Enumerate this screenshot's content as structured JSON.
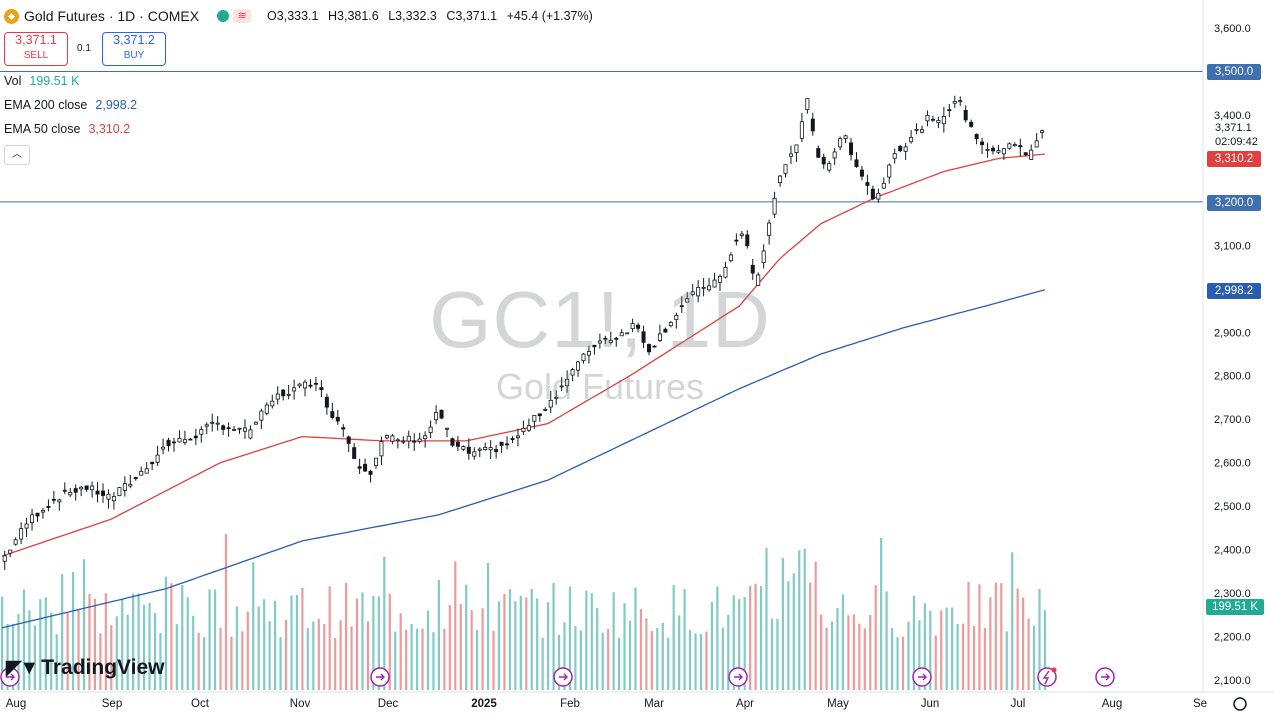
{
  "header": {
    "title": "Gold Futures · 1D · COMEX",
    "ohlc": {
      "open_label": "O",
      "open": "3,333.1",
      "high_label": "H",
      "high": "3,381.6",
      "low_label": "L",
      "low": "3,332.3",
      "close_label": "C",
      "close": "3,371.1",
      "change": "+45.4 (+1.37%)"
    },
    "icons": [
      "gold-coin-icon",
      "status-dot-icon",
      "menu-icon"
    ]
  },
  "trade": {
    "sell_price": "3,371.1",
    "sell_label": "SELL",
    "spread": "0.1",
    "buy_price": "3,371.2",
    "buy_label": "BUY"
  },
  "legend": {
    "vol_label": "Vol",
    "vol_value": "199.51 K",
    "ema200_label": "EMA 200 close",
    "ema200_value": "2,998.2",
    "ema50_label": "EMA 50 close",
    "ema50_value": "3,310.2"
  },
  "watermark": {
    "symbol": "GC1!, 1D",
    "name": "Gold Futures"
  },
  "brand": "TradingView",
  "price_axis_tags": {
    "level_high": "3,500.0",
    "level_low": "3,200.0",
    "last_price": "3,371.1",
    "countdown": "02:09:42",
    "ema50": "3,310.2",
    "ema200": "2,998.2",
    "volume": "199.51 K"
  },
  "colors": {
    "up": "#26a69a",
    "down": "#ef5350",
    "candle": "#131722",
    "ema50": "#e0403e",
    "ema200": "#2a5db0",
    "level": "#3f6fae",
    "vol_up": "#80cbc4",
    "vol_down": "#ef9a9a"
  },
  "chart_data": {
    "type": "candlestick",
    "symbol": "GC1!",
    "interval": "1D",
    "y_axis": {
      "ticks": [
        2100,
        2200,
        2300,
        2400,
        2500,
        2600,
        2700,
        2800,
        2900,
        3000,
        3100,
        3200,
        3300,
        3400,
        3500,
        3600
      ],
      "ylim": [
        2080,
        3620
      ]
    },
    "x_axis": {
      "ticks": [
        "Aug",
        "Sep",
        "Oct",
        "Nov",
        "Dec",
        "2025",
        "Feb",
        "Mar",
        "Apr",
        "May",
        "Jun",
        "Jul",
        "Aug",
        "Se"
      ]
    },
    "horizontal_levels": [
      3500,
      3200
    ],
    "price_anchors": [
      [
        0,
        2375
      ],
      [
        10,
        2470
      ],
      [
        20,
        2520
      ],
      [
        30,
        2545
      ],
      [
        40,
        2520
      ],
      [
        50,
        2570
      ],
      [
        60,
        2640
      ],
      [
        70,
        2660
      ],
      [
        78,
        2690
      ],
      [
        90,
        2670
      ],
      [
        100,
        2750
      ],
      [
        115,
        2790
      ],
      [
        120,
        2720
      ],
      [
        125,
        2680
      ],
      [
        130,
        2600
      ],
      [
        135,
        2580
      ],
      [
        140,
        2660
      ],
      [
        145,
        2650
      ],
      [
        155,
        2660
      ],
      [
        160,
        2720
      ],
      [
        165,
        2640
      ],
      [
        172,
        2620
      ],
      [
        180,
        2630
      ],
      [
        187,
        2650
      ],
      [
        195,
        2700
      ],
      [
        202,
        2750
      ],
      [
        210,
        2820
      ],
      [
        218,
        2880
      ],
      [
        225,
        2890
      ],
      [
        232,
        2920
      ],
      [
        237,
        2860
      ],
      [
        242,
        2900
      ],
      [
        250,
        2970
      ],
      [
        258,
        3010
      ],
      [
        263,
        3020
      ],
      [
        268,
        3100
      ],
      [
        272,
        3130
      ],
      [
        276,
        3000
      ],
      [
        280,
        3120
      ],
      [
        284,
        3240
      ],
      [
        288,
        3300
      ],
      [
        292,
        3350
      ],
      [
        295,
        3430
      ],
      [
        298,
        3320
      ],
      [
        302,
        3280
      ],
      [
        306,
        3330
      ],
      [
        309,
        3350
      ],
      [
        312,
        3300
      ],
      [
        316,
        3250
      ],
      [
        320,
        3200
      ],
      [
        323,
        3250
      ],
      [
        327,
        3320
      ],
      [
        331,
        3330
      ],
      [
        335,
        3360
      ],
      [
        339,
        3390
      ],
      [
        343,
        3380
      ],
      [
        347,
        3420
      ],
      [
        350,
        3440
      ],
      [
        354,
        3380
      ],
      [
        358,
        3340
      ],
      [
        362,
        3320
      ],
      [
        365,
        3310
      ],
      [
        369,
        3340
      ],
      [
        373,
        3330
      ],
      [
        376,
        3300
      ],
      [
        379,
        3340
      ],
      [
        382,
        3371
      ]
    ],
    "ema50_anchors": [
      [
        0,
        2385
      ],
      [
        40,
        2470
      ],
      [
        80,
        2600
      ],
      [
        110,
        2660
      ],
      [
        140,
        2650
      ],
      [
        170,
        2650
      ],
      [
        200,
        2690
      ],
      [
        230,
        2800
      ],
      [
        255,
        2900
      ],
      [
        270,
        2960
      ],
      [
        285,
        3070
      ],
      [
        300,
        3150
      ],
      [
        320,
        3210
      ],
      [
        345,
        3270
      ],
      [
        365,
        3300
      ],
      [
        382,
        3310
      ]
    ],
    "ema200_anchors": [
      [
        0,
        2220
      ],
      [
        60,
        2310
      ],
      [
        110,
        2420
      ],
      [
        160,
        2480
      ],
      [
        200,
        2560
      ],
      [
        240,
        2680
      ],
      [
        270,
        2770
      ],
      [
        300,
        2850
      ],
      [
        330,
        2910
      ],
      [
        360,
        2960
      ],
      [
        382,
        2998
      ]
    ],
    "volume_note": "bars per session, scaled to 0-500K",
    "last": {
      "price": 3371.1,
      "volume_k": 199.51,
      "ema50": 3310.2,
      "ema200": 2998.2
    }
  }
}
